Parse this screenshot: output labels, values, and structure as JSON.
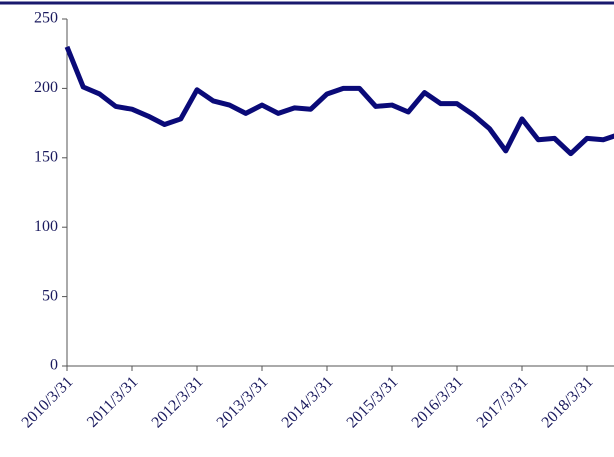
{
  "chart_data": {
    "type": "line",
    "categories": [
      "2010/3/31",
      null,
      null,
      null,
      "2011/3/31",
      null,
      null,
      null,
      "2012/3/31",
      null,
      null,
      null,
      "2013/3/31",
      null,
      null,
      null,
      "2014/3/31",
      null,
      null,
      null,
      "2015/3/31",
      null,
      null,
      null,
      "2016/3/31",
      null,
      null,
      null,
      "2017/3/31",
      null,
      null,
      null,
      "2018/3/31",
      null,
      null
    ],
    "series": [
      {
        "color": "#0a0a78",
        "values": [
          230,
          201,
          196,
          187,
          185,
          180,
          174,
          178,
          199,
          191,
          188,
          182,
          188,
          182,
          186,
          185,
          196,
          200,
          200,
          187,
          188,
          183,
          197,
          189,
          189,
          181,
          171,
          155,
          178,
          163,
          164,
          153,
          164,
          163,
          167
        ]
      }
    ],
    "ylim": [
      0,
      250
    ],
    "yticks": [
      0,
      50,
      100,
      150,
      200,
      250
    ],
    "grid": false
  }
}
